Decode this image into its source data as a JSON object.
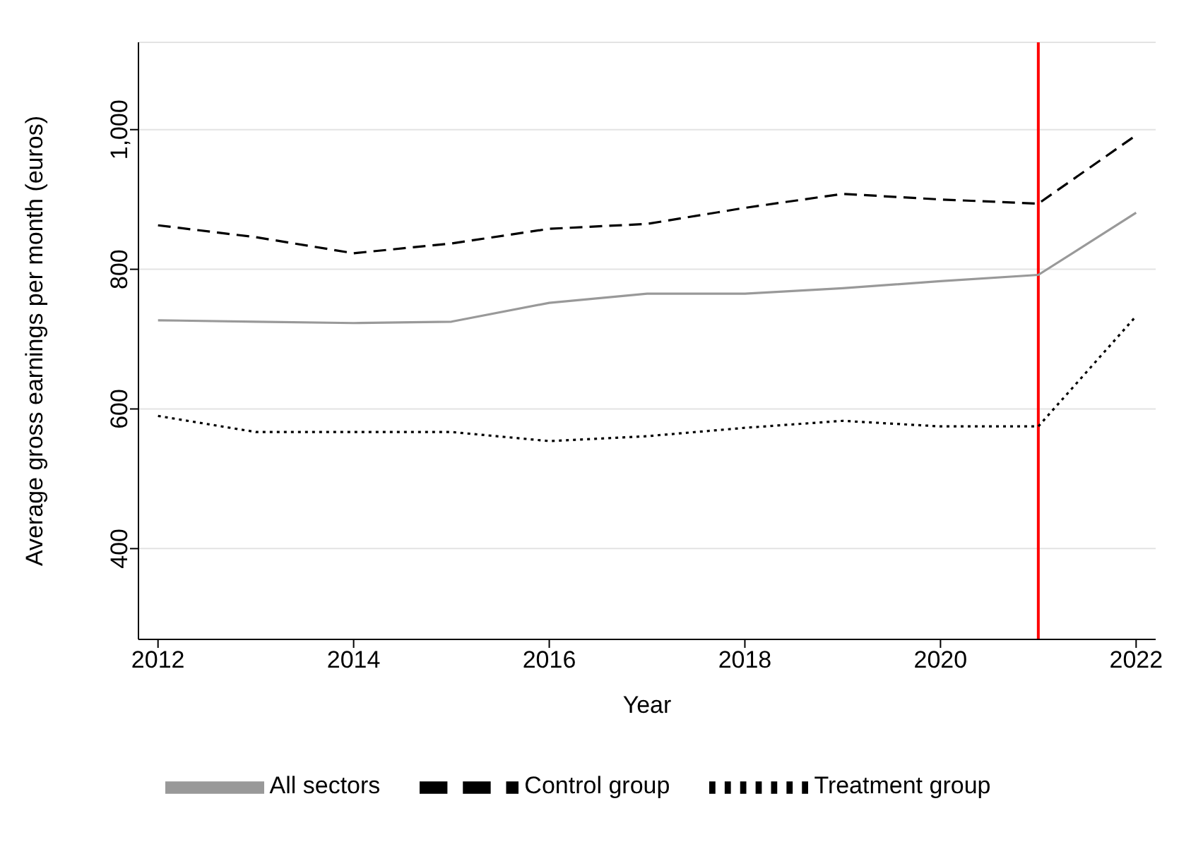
{
  "chart_data": {
    "type": "line",
    "xlabel": "Year",
    "ylabel": "Average gross earnings per month (euros)",
    "x": [
      2012,
      2013,
      2014,
      2015,
      2016,
      2017,
      2018,
      2019,
      2020,
      2021,
      2022
    ],
    "series": [
      {
        "name": "All sectors",
        "color": "#999999",
        "line_style": "solid",
        "values": [
          727,
          725,
          723,
          725,
          752,
          765,
          765,
          773,
          783,
          792,
          881
        ]
      },
      {
        "name": "Control group",
        "color": "#000000",
        "line_style": "dashed",
        "values": [
          863,
          846,
          823,
          837,
          858,
          865,
          888,
          908,
          900,
          894,
          992
        ]
      },
      {
        "name": "Treatment group",
        "color": "#000000",
        "line_style": "dotted",
        "values": [
          590,
          567,
          567,
          567,
          554,
          561,
          573,
          583,
          575,
          575,
          733
        ]
      }
    ],
    "xlim": [
      2011.8,
      2022.2
    ],
    "xticks": [
      2012,
      2014,
      2016,
      2018,
      2020,
      2022
    ],
    "ylim": [
      270,
      1125
    ],
    "yticks": [
      400,
      600,
      800,
      {
        "value": 1000,
        "label": "1,000"
      }
    ],
    "grid": "y",
    "legend": "bottom",
    "marker": "none",
    "ref_lines": [
      {
        "axis": "x",
        "value": 2021,
        "color": "#ff0000",
        "line_style": "solid"
      }
    ]
  }
}
